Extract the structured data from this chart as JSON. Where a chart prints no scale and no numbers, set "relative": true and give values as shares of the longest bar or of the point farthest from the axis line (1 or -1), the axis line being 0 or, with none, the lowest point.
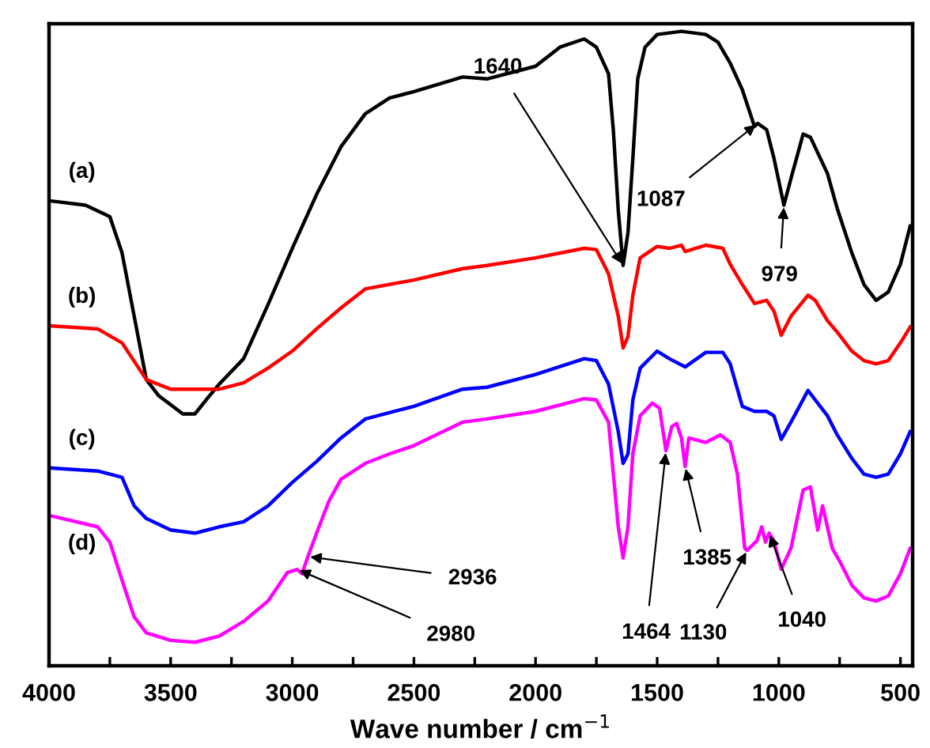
{
  "chart_data": {
    "type": "line",
    "relative": true,
    "xlabel": "Wave number / cm$^{−1}$",
    "xlim": [
      4000,
      450
    ],
    "xticks": [
      4000,
      {
        "value": 3750,
        "label": null
      },
      3500,
      {
        "value": 3250,
        "label": null
      },
      3000,
      {
        "value": 2750,
        "label": null
      },
      2500,
      {
        "value": 2250,
        "label": null
      },
      2000,
      {
        "value": 1750,
        "label": null
      },
      1500,
      {
        "value": 1250,
        "label": null
      },
      1000,
      {
        "value": 750,
        "label": null
      },
      500
    ],
    "tick_labels": "x",
    "grid": false,
    "legend": false,
    "marker": "none",
    "line_style": "solid",
    "series": [
      {
        "name": "(a)",
        "color": "#000000",
        "x": [
          4000,
          3850,
          3750,
          3700,
          3650,
          3600,
          3550,
          3450,
          3400,
          3350,
          3300,
          3200,
          3100,
          3000,
          2900,
          2800,
          2700,
          2600,
          2500,
          2300,
          2200,
          2000,
          1900,
          1800,
          1750,
          1700,
          1680,
          1660,
          1640,
          1620,
          1600,
          1580,
          1550,
          1500,
          1400,
          1300,
          1250,
          1200,
          1150,
          1100,
          1087,
          1050,
          1020,
          979,
          950,
          900,
          870,
          800,
          760,
          700,
          650,
          600,
          550,
          500,
          460
        ],
        "values": [
          0.733,
          0.726,
          0.708,
          0.651,
          0.551,
          0.451,
          0.426,
          0.397,
          0.397,
          0.421,
          0.444,
          0.484,
          0.569,
          0.658,
          0.743,
          0.818,
          0.87,
          0.895,
          0.905,
          0.928,
          0.925,
          0.945,
          0.975,
          0.988,
          0.975,
          0.933,
          0.843,
          0.718,
          0.631,
          0.683,
          0.8,
          0.925,
          0.975,
          0.995,
          1.0,
          0.995,
          0.983,
          0.95,
          0.908,
          0.85,
          0.855,
          0.845,
          0.8,
          0.726,
          0.768,
          0.838,
          0.833,
          0.776,
          0.721,
          0.651,
          0.601,
          0.576,
          0.589,
          0.633,
          0.693
        ]
      },
      {
        "name": "(b)",
        "color": "#ff0000",
        "x": [
          4000,
          3800,
          3700,
          3600,
          3500,
          3300,
          3200,
          3100,
          3000,
          2900,
          2800,
          2700,
          2500,
          2300,
          2200,
          2000,
          1800,
          1750,
          1700,
          1660,
          1640,
          1620,
          1600,
          1570,
          1500,
          1450,
          1400,
          1385,
          1300,
          1230,
          1200,
          1150,
          1100,
          1050,
          1020,
          990,
          950,
          880,
          850,
          800,
          760,
          700,
          650,
          600,
          550,
          500,
          460
        ],
        "values": [
          0.536,
          0.531,
          0.509,
          0.451,
          0.436,
          0.436,
          0.446,
          0.469,
          0.496,
          0.531,
          0.564,
          0.594,
          0.608,
          0.626,
          0.631,
          0.643,
          0.658,
          0.656,
          0.618,
          0.551,
          0.501,
          0.519,
          0.584,
          0.643,
          0.661,
          0.658,
          0.663,
          0.653,
          0.663,
          0.658,
          0.633,
          0.601,
          0.571,
          0.576,
          0.559,
          0.521,
          0.551,
          0.584,
          0.576,
          0.544,
          0.526,
          0.496,
          0.481,
          0.476,
          0.481,
          0.509,
          0.534
        ]
      },
      {
        "name": "(c)",
        "color": "#0000ff",
        "x": [
          4000,
          3800,
          3700,
          3650,
          3600,
          3500,
          3400,
          3300,
          3200,
          3100,
          3000,
          2900,
          2800,
          2700,
          2500,
          2300,
          2200,
          2000,
          1800,
          1750,
          1700,
          1660,
          1640,
          1620,
          1600,
          1570,
          1500,
          1450,
          1385,
          1300,
          1230,
          1200,
          1150,
          1100,
          1050,
          1020,
          990,
          950,
          880,
          850,
          800,
          760,
          700,
          650,
          600,
          550,
          500,
          460
        ],
        "values": [
          0.312,
          0.307,
          0.297,
          0.252,
          0.232,
          0.214,
          0.209,
          0.219,
          0.227,
          0.252,
          0.289,
          0.322,
          0.359,
          0.389,
          0.409,
          0.436,
          0.439,
          0.459,
          0.484,
          0.481,
          0.444,
          0.369,
          0.319,
          0.334,
          0.419,
          0.469,
          0.496,
          0.484,
          0.471,
          0.494,
          0.494,
          0.476,
          0.409,
          0.401,
          0.401,
          0.394,
          0.357,
          0.384,
          0.434,
          0.419,
          0.394,
          0.364,
          0.327,
          0.302,
          0.297,
          0.302,
          0.334,
          0.369
        ]
      },
      {
        "name": "(d)",
        "color": "#ff00ff",
        "x": [
          4000,
          3800,
          3750,
          3700,
          3650,
          3600,
          3500,
          3400,
          3300,
          3200,
          3100,
          3020,
          2980,
          2960,
          2936,
          2900,
          2850,
          2800,
          2700,
          2600,
          2500,
          2300,
          2200,
          2000,
          1800,
          1750,
          1700,
          1680,
          1660,
          1640,
          1620,
          1600,
          1570,
          1520,
          1490,
          1464,
          1440,
          1420,
          1400,
          1385,
          1370,
          1300,
          1240,
          1200,
          1170,
          1140,
          1130,
          1090,
          1070,
          1055,
          1040,
          1020,
          990,
          950,
          900,
          870,
          840,
          820,
          780,
          750,
          700,
          650,
          600,
          550,
          500,
          460
        ],
        "values": [
          0.237,
          0.219,
          0.195,
          0.135,
          0.077,
          0.052,
          0.04,
          0.037,
          0.047,
          0.07,
          0.102,
          0.147,
          0.152,
          0.145,
          0.172,
          0.209,
          0.259,
          0.294,
          0.319,
          0.334,
          0.347,
          0.384,
          0.389,
          0.401,
          0.421,
          0.419,
          0.384,
          0.302,
          0.219,
          0.17,
          0.219,
          0.334,
          0.394,
          0.414,
          0.406,
          0.339,
          0.377,
          0.382,
          0.359,
          0.314,
          0.359,
          0.352,
          0.364,
          0.352,
          0.302,
          0.185,
          0.182,
          0.197,
          0.219,
          0.195,
          0.209,
          0.197,
          0.152,
          0.185,
          0.277,
          0.282,
          0.214,
          0.252,
          0.185,
          0.165,
          0.127,
          0.107,
          0.102,
          0.11,
          0.145,
          0.185
        ]
      }
    ],
    "annotations": [
      {
        "text": "1640",
        "x": 1640,
        "y": 0.631
      },
      {
        "text": "1087",
        "x": 1087,
        "y": 0.855
      },
      {
        "text": "979",
        "x": 979,
        "y": 0.726
      },
      {
        "text": "2936",
        "x": 2936,
        "y": 0.172
      },
      {
        "text": "2980",
        "x": 2980,
        "y": 0.152
      },
      {
        "text": "1464",
        "x": 1464,
        "y": 0.339
      },
      {
        "text": "1385",
        "x": 1385,
        "y": 0.314
      },
      {
        "text": "1130",
        "x": 1130,
        "y": 0.182
      },
      {
        "text": "1040",
        "x": 1040,
        "y": 0.209
      }
    ]
  }
}
